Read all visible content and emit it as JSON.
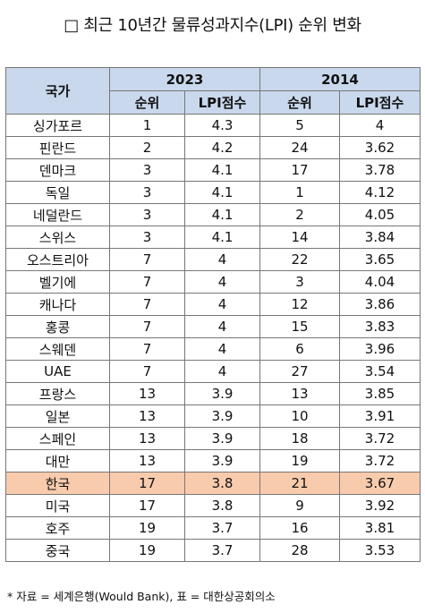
{
  "title": "□ 최근 10년간 물류성과지수(LPI) 순위 변화",
  "table": {
    "country_header": "국가",
    "year_2023": "2023",
    "year_2014": "2014",
    "rank_header": "순위",
    "lpi_header": "LPI점수",
    "highlight_color": "#f8cbad",
    "header_color": "#c9d8ec",
    "rows": [
      {
        "country": "싱가포르",
        "rank2023": "1",
        "lpi2023": "4.3",
        "rank2014": "5",
        "lpi2014": "4"
      },
      {
        "country": "핀란드",
        "rank2023": "2",
        "lpi2023": "4.2",
        "rank2014": "24",
        "lpi2014": "3.62"
      },
      {
        "country": "덴마크",
        "rank2023": "3",
        "lpi2023": "4.1",
        "rank2014": "17",
        "lpi2014": "3.78"
      },
      {
        "country": "독일",
        "rank2023": "3",
        "lpi2023": "4.1",
        "rank2014": "1",
        "lpi2014": "4.12"
      },
      {
        "country": "네덜란드",
        "rank2023": "3",
        "lpi2023": "4.1",
        "rank2014": "2",
        "lpi2014": "4.05"
      },
      {
        "country": "스위스",
        "rank2023": "3",
        "lpi2023": "4.1",
        "rank2014": "14",
        "lpi2014": "3.84"
      },
      {
        "country": "오스트리아",
        "rank2023": "7",
        "lpi2023": "4",
        "rank2014": "22",
        "lpi2014": "3.65"
      },
      {
        "country": "벨기에",
        "rank2023": "7",
        "lpi2023": "4",
        "rank2014": "3",
        "lpi2014": "4.04"
      },
      {
        "country": "캐나다",
        "rank2023": "7",
        "lpi2023": "4",
        "rank2014": "12",
        "lpi2014": "3.86"
      },
      {
        "country": "홍콩",
        "rank2023": "7",
        "lpi2023": "4",
        "rank2014": "15",
        "lpi2014": "3.83"
      },
      {
        "country": "스웨덴",
        "rank2023": "7",
        "lpi2023": "4",
        "rank2014": "6",
        "lpi2014": "3.96"
      },
      {
        "country": "UAE",
        "rank2023": "7",
        "lpi2023": "4",
        "rank2014": "27",
        "lpi2014": "3.54"
      },
      {
        "country": "프랑스",
        "rank2023": "13",
        "lpi2023": "3.9",
        "rank2014": "13",
        "lpi2014": "3.85"
      },
      {
        "country": "일본",
        "rank2023": "13",
        "lpi2023": "3.9",
        "rank2014": "10",
        "lpi2014": "3.91"
      },
      {
        "country": "스페인",
        "rank2023": "13",
        "lpi2023": "3.9",
        "rank2014": "18",
        "lpi2014": "3.72"
      },
      {
        "country": "대만",
        "rank2023": "13",
        "lpi2023": "3.9",
        "rank2014": "19",
        "lpi2014": "3.72"
      },
      {
        "country": "한국",
        "rank2023": "17",
        "lpi2023": "3.8",
        "rank2014": "21",
        "lpi2014": "3.67",
        "highlight": true
      },
      {
        "country": "미국",
        "rank2023": "17",
        "lpi2023": "3.8",
        "rank2014": "9",
        "lpi2014": "3.92"
      },
      {
        "country": "호주",
        "rank2023": "19",
        "lpi2023": "3.7",
        "rank2014": "16",
        "lpi2014": "3.81"
      },
      {
        "country": "중국",
        "rank2023": "19",
        "lpi2023": "3.7",
        "rank2014": "28",
        "lpi2014": "3.53"
      }
    ]
  },
  "footnote": "* 자료 = 세계은행(Would Bank), 표 = 대한상공회의소"
}
